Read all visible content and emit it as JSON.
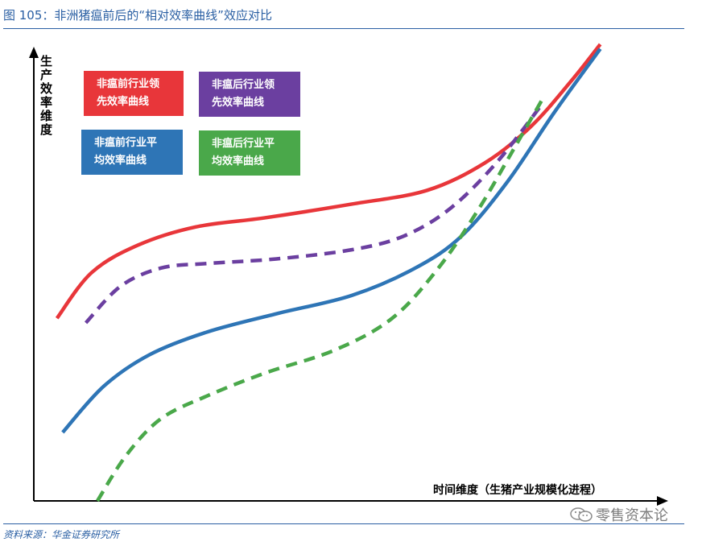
{
  "figure": {
    "title": "图 105：非洲猪瘟前后的“相对效率曲线”效应对比",
    "source": "资料来源：华金证券研究所",
    "watermark": "零售资本论"
  },
  "chart_data": {
    "type": "line",
    "title": "",
    "xlabel": "时间维度（生猪产业规模化进程）",
    "ylabel": "生产效率维度",
    "xlim": [
      0,
      100
    ],
    "ylim": [
      0,
      100
    ],
    "grid": false,
    "legend_placement": "top-left",
    "series": [
      {
        "name": "非瘟前行业领先效率曲线",
        "color": "#e8363a",
        "style": "solid",
        "x": [
          4,
          10,
          18,
          28,
          40,
          55,
          68,
          78,
          86,
          93,
          98
        ],
        "y": [
          40,
          50,
          56,
          60,
          62,
          65,
          68,
          74,
          82,
          92,
          100
        ]
      },
      {
        "name": "非瘟后行业领先效率曲线",
        "color": "#6b3fa0",
        "style": "dashed",
        "x": [
          9,
          15,
          22,
          30,
          42,
          55,
          64,
          72,
          80,
          88
        ],
        "y": [
          39,
          47,
          51,
          52,
          53,
          55,
          58,
          64,
          74,
          87
        ]
      },
      {
        "name": "非瘟前行业平均效率曲线",
        "color": "#2e75b6",
        "style": "solid",
        "x": [
          5,
          12,
          20,
          30,
          42,
          55,
          66,
          74,
          82,
          90,
          98
        ],
        "y": [
          15,
          25,
          32,
          37,
          41,
          45,
          51,
          58,
          70,
          85,
          99
        ]
      },
      {
        "name": "非瘟后行业平均效率曲线",
        "color": "#4aa84a",
        "style": "dashed",
        "x": [
          11,
          16,
          22,
          30,
          40,
          52,
          62,
          70,
          77,
          83,
          88
        ],
        "y": [
          0,
          10,
          18,
          23,
          28,
          33,
          40,
          51,
          64,
          77,
          88
        ]
      }
    ]
  },
  "legend_labels": {
    "red_line1": "非瘟前行业领",
    "red_line2": "先效率曲线",
    "purple_line1": "非瘟后行业领",
    "purple_line2": "先效率曲线",
    "blue_line1": "非瘟前行业平",
    "blue_line2": "均效率曲线",
    "green_line1": "非瘟后行业平",
    "green_line2": "均效率曲线"
  },
  "colors": {
    "title_blue": "#2a5fa3",
    "red": "#e8363a",
    "purple": "#6b3fa0",
    "blue": "#2e75b6",
    "green": "#4aa84a"
  },
  "icons": {
    "watermark_icon": "wechat-icon"
  }
}
